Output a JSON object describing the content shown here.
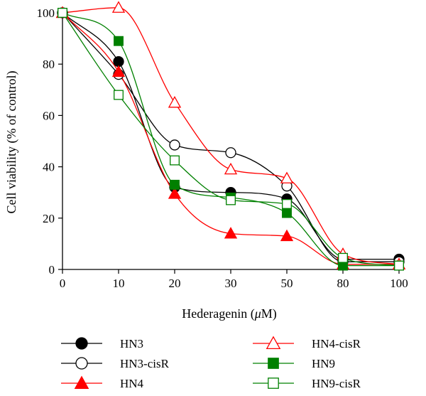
{
  "chart_data": {
    "type": "line",
    "title": "",
    "xlabel": "Hederagenin (μM)",
    "xlabel_parts": {
      "before": "Hederagenin (",
      "mu": "μ",
      "after": "M)"
    },
    "ylabel": "Cell viability (% of control)",
    "categories": [
      "0",
      "10",
      "20",
      "30",
      "50",
      "80",
      "100"
    ],
    "ylim": [
      0,
      100
    ],
    "yticks": [
      0,
      20,
      40,
      60,
      80,
      100
    ],
    "grid": false,
    "legend_position": "bottom",
    "series": [
      {
        "name": "HN3",
        "color": "#000000",
        "marker": "circle",
        "filled": true,
        "values": [
          100,
          81,
          32,
          30,
          27.5,
          4,
          4
        ]
      },
      {
        "name": "HN3-cisR",
        "color": "#000000",
        "marker": "circle",
        "filled": false,
        "values": [
          100,
          76,
          48.5,
          45.5,
          32.5,
          3,
          3
        ]
      },
      {
        "name": "HN4",
        "color": "#ff0000",
        "marker": "triangle",
        "filled": true,
        "values": [
          100,
          77,
          29.5,
          14,
          13,
          2,
          2
        ]
      },
      {
        "name": "HN4-cisR",
        "color": "#ff0000",
        "marker": "triangle",
        "filled": false,
        "values": [
          100,
          102,
          65,
          39,
          35.5,
          6,
          2
        ]
      },
      {
        "name": "HN9",
        "color": "#008000",
        "marker": "square",
        "filled": true,
        "values": [
          100,
          89,
          33,
          28,
          22,
          1.5,
          1.5
        ]
      },
      {
        "name": "HN9-cisR",
        "color": "#008000",
        "marker": "square",
        "filled": false,
        "values": [
          100,
          68,
          42.5,
          27,
          25.5,
          4.5,
          1.5
        ]
      }
    ]
  }
}
